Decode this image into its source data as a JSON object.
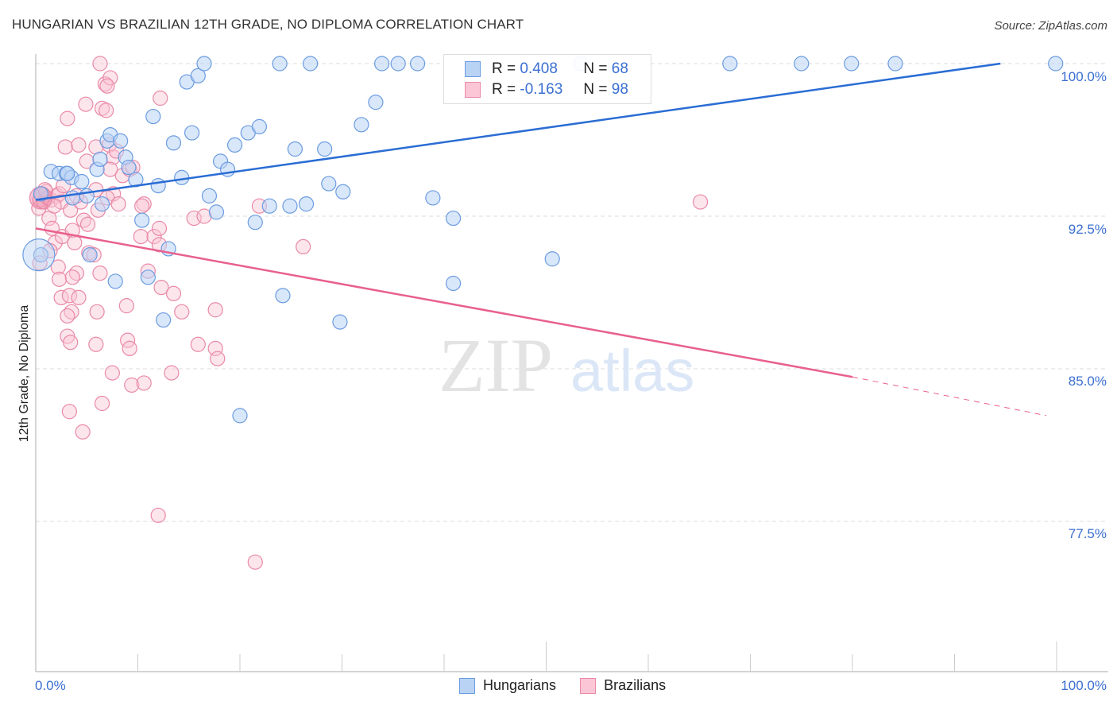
{
  "header": {
    "title": "HUNGARIAN VS BRAZILIAN 12TH GRADE, NO DIPLOMA CORRELATION CHART",
    "source": "Source: ZipAtlas.com"
  },
  "axes": {
    "ylabel": "12th Grade, No Diploma",
    "yticks": [
      "100.0%",
      "92.5%",
      "85.0%",
      "77.5%"
    ],
    "xticks": [
      "0.0%",
      "100.0%"
    ]
  },
  "legend": {
    "series": [
      {
        "name": "Hungarians",
        "r_label": "R =",
        "r_value": "0.408",
        "n_label": "N =",
        "n_value": "68",
        "fill": "#b9d3f5",
        "stroke": "#6b9ce0"
      },
      {
        "name": "Brazilians",
        "r_label": "R =",
        "r_value": "-0.163",
        "n_label": "N =",
        "n_value": "98",
        "fill": "#fbc6d5",
        "stroke": "#e98aa8"
      }
    ]
  },
  "watermark": {
    "zip": "ZIP",
    "atlas": "atlas"
  },
  "colors": {
    "blue_line": "#2a6dd4",
    "pink_line": "#e8608e",
    "tick_text": "#3b6fd1",
    "grid": "#dddddd"
  },
  "chart_data": {
    "type": "scatter",
    "title": "HUNGARIAN VS BRAZILIAN 12TH GRADE, NO DIPLOMA CORRELATION CHART",
    "xlabel": "",
    "ylabel": "12th Grade, No Diploma",
    "xlim": [
      0,
      100
    ],
    "ylim": [
      71.5,
      100.7
    ],
    "yticks": [
      77.5,
      85.0,
      92.5,
      100.0
    ],
    "xticks": [
      0,
      100
    ],
    "grid": "horizontal dashed",
    "legend_position": "top-center (stats box) and bottom-center",
    "series": [
      {
        "name": "Hungarians",
        "R": 0.408,
        "N": 68,
        "color": "#6b9ce0",
        "trendline": {
          "x": [
            0,
            94.5
          ],
          "y": [
            93.3,
            100.0
          ]
        },
        "points": [
          [
            0.5,
            90.6
          ],
          [
            0.5,
            93.6
          ],
          [
            1.5,
            94.7
          ],
          [
            2.3,
            94.6
          ],
          [
            3.0,
            94.6
          ],
          [
            3.5,
            94.4
          ],
          [
            4.5,
            94.2
          ],
          [
            3.6,
            93.4
          ],
          [
            3.1,
            94.6
          ],
          [
            5.0,
            93.5
          ],
          [
            5.3,
            90.6
          ],
          [
            6.0,
            94.8
          ],
          [
            6.3,
            95.3
          ],
          [
            6.5,
            93.1
          ],
          [
            7.0,
            96.2
          ],
          [
            7.3,
            96.5
          ],
          [
            8.3,
            96.2
          ],
          [
            8.8,
            95.4
          ],
          [
            9.1,
            94.9
          ],
          [
            9.8,
            94.3
          ],
          [
            10.4,
            92.3
          ],
          [
            11.5,
            97.4
          ],
          [
            12.0,
            94.0
          ],
          [
            13.0,
            90.9
          ],
          [
            11.0,
            89.5
          ],
          [
            7.8,
            89.3
          ],
          [
            12.5,
            87.4
          ],
          [
            13.5,
            96.1
          ],
          [
            14.3,
            94.4
          ],
          [
            14.8,
            99.1
          ],
          [
            15.3,
            96.6
          ],
          [
            15.9,
            99.4
          ],
          [
            16.5,
            100.0
          ],
          [
            17.0,
            93.5
          ],
          [
            17.7,
            92.7
          ],
          [
            18.1,
            95.2
          ],
          [
            18.8,
            94.8
          ],
          [
            19.5,
            96.0
          ],
          [
            20.0,
            82.7
          ],
          [
            20.8,
            96.6
          ],
          [
            21.5,
            92.2
          ],
          [
            21.9,
            96.9
          ],
          [
            22.9,
            93.0
          ],
          [
            23.9,
            100.0
          ],
          [
            24.2,
            88.6
          ],
          [
            24.9,
            93.0
          ],
          [
            25.4,
            95.8
          ],
          [
            26.5,
            93.1
          ],
          [
            26.9,
            100.0
          ],
          [
            28.3,
            95.8
          ],
          [
            28.7,
            94.1
          ],
          [
            29.8,
            87.3
          ],
          [
            30.1,
            93.7
          ],
          [
            31.9,
            97.0
          ],
          [
            33.3,
            98.1
          ],
          [
            33.9,
            100.0
          ],
          [
            35.5,
            100.0
          ],
          [
            37.4,
            100.0
          ],
          [
            38.9,
            93.4
          ],
          [
            40.9,
            92.4
          ],
          [
            40.9,
            89.2
          ],
          [
            50.6,
            90.4
          ],
          [
            53.4,
            100.0
          ],
          [
            68.0,
            100.0
          ],
          [
            75.0,
            100.0
          ],
          [
            79.9,
            100.0
          ],
          [
            84.2,
            100.0
          ],
          [
            99.9,
            100.0
          ]
        ]
      },
      {
        "name": "Brazilians",
        "R": -0.163,
        "N": 98,
        "color": "#e98aa8",
        "trendline": {
          "x": [
            0,
            80.0
          ],
          "y": [
            91.9,
            84.6
          ]
        },
        "trendline_dashed_extension": {
          "x": [
            80.0,
            99.0
          ],
          "y": [
            84.6,
            82.7
          ]
        },
        "points": [
          [
            0.3,
            92.9
          ],
          [
            0.4,
            93.3
          ],
          [
            0.6,
            93.6
          ],
          [
            0.8,
            93.2
          ],
          [
            1.0,
            93.7
          ],
          [
            1.2,
            93.4
          ],
          [
            1.5,
            93.3
          ],
          [
            0.4,
            90.2
          ],
          [
            1.3,
            92.4
          ],
          [
            1.6,
            91.9
          ],
          [
            1.9,
            91.2
          ],
          [
            2.1,
            93.5
          ],
          [
            2.3,
            93.6
          ],
          [
            2.5,
            93.2
          ],
          [
            2.6,
            91.5
          ],
          [
            2.2,
            90.0
          ],
          [
            2.3,
            89.4
          ],
          [
            2.5,
            88.5
          ],
          [
            3.1,
            86.6
          ],
          [
            3.5,
            87.8
          ],
          [
            3.1,
            87.6
          ],
          [
            3.3,
            88.6
          ],
          [
            2.9,
            95.9
          ],
          [
            3.1,
            97.3
          ],
          [
            3.4,
            92.8
          ],
          [
            3.6,
            91.8
          ],
          [
            3.8,
            91.2
          ],
          [
            4.0,
            89.7
          ],
          [
            4.2,
            88.5
          ],
          [
            3.4,
            86.3
          ],
          [
            3.3,
            82.9
          ],
          [
            4.4,
            93.2
          ],
          [
            4.7,
            92.3
          ],
          [
            5.1,
            92.1
          ],
          [
            5.2,
            90.7
          ],
          [
            4.2,
            96.0
          ],
          [
            4.9,
            98.0
          ],
          [
            5.9,
            95.9
          ],
          [
            5.9,
            93.8
          ],
          [
            6.1,
            92.8
          ],
          [
            6.3,
            89.7
          ],
          [
            6.0,
            87.8
          ],
          [
            5.9,
            86.2
          ],
          [
            6.5,
            83.3
          ],
          [
            4.6,
            81.9
          ],
          [
            7.2,
            96.0
          ],
          [
            7.6,
            95.4
          ],
          [
            6.5,
            97.8
          ],
          [
            6.9,
            97.7
          ],
          [
            6.8,
            99.0
          ],
          [
            6.3,
            100.0
          ],
          [
            7.3,
            99.3
          ],
          [
            7.0,
            98.9
          ],
          [
            7.9,
            95.7
          ],
          [
            8.5,
            94.5
          ],
          [
            9.2,
            94.8
          ],
          [
            7.3,
            94.8
          ],
          [
            7.6,
            93.6
          ],
          [
            7.0,
            93.4
          ],
          [
            8.1,
            93.1
          ],
          [
            8.9,
            88.1
          ],
          [
            9.0,
            86.4
          ],
          [
            9.2,
            86.0
          ],
          [
            7.5,
            84.8
          ],
          [
            9.4,
            84.2
          ],
          [
            10.6,
            84.3
          ],
          [
            10.3,
            91.5
          ],
          [
            10.6,
            93.1
          ],
          [
            11.6,
            91.5
          ],
          [
            12.1,
            91.9
          ],
          [
            12.1,
            91.1
          ],
          [
            12.2,
            98.3
          ],
          [
            12.3,
            89.0
          ],
          [
            13.5,
            88.7
          ],
          [
            14.3,
            87.8
          ],
          [
            13.3,
            84.8
          ],
          [
            15.5,
            92.4
          ],
          [
            15.9,
            86.2
          ],
          [
            16.5,
            92.5
          ],
          [
            17.6,
            87.9
          ],
          [
            17.6,
            86.0
          ],
          [
            17.8,
            85.5
          ],
          [
            12.0,
            77.8
          ],
          [
            21.5,
            75.5
          ],
          [
            26.2,
            91.0
          ],
          [
            21.9,
            93.0
          ],
          [
            9.5,
            94.9
          ],
          [
            5.0,
            95.2
          ],
          [
            4.0,
            93.5
          ],
          [
            0.9,
            93.8
          ],
          [
            1.8,
            93.0
          ],
          [
            2.7,
            94.0
          ],
          [
            5.7,
            90.6
          ],
          [
            3.6,
            89.5
          ],
          [
            10.4,
            93.0
          ],
          [
            11.0,
            89.8
          ],
          [
            65.1,
            93.2
          ],
          [
            1.4,
            90.8
          ]
        ]
      }
    ]
  }
}
